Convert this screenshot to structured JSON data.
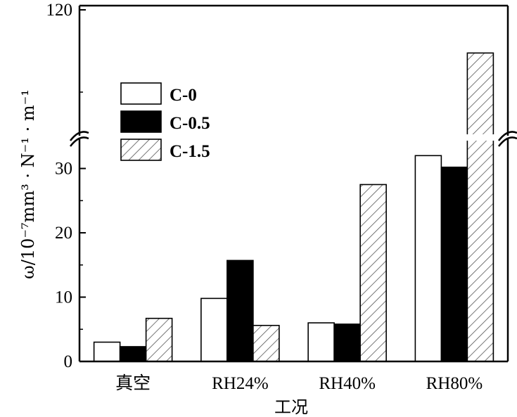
{
  "chart_data": {
    "type": "bar",
    "title": "",
    "xlabel": "工况",
    "ylabel": "ω/10⁻⁷mm³ · N⁻¹ · m⁻¹",
    "categories": [
      "真空",
      "RH24%",
      "RH40%",
      "RH80%"
    ],
    "series": [
      {
        "name": "C-0",
        "values": [
          3.0,
          9.8,
          6.0,
          32.0
        ],
        "fill": "white"
      },
      {
        "name": "C-0.5",
        "values": [
          2.3,
          15.7,
          5.8,
          30.2
        ],
        "fill": "black"
      },
      {
        "name": "C-1.5",
        "values": [
          6.7,
          5.6,
          27.5,
          108.0
        ],
        "fill": "hatch"
      }
    ],
    "ylim": [
      0,
      120
    ],
    "axis_break": [
      34,
      85
    ],
    "yticks": [
      0,
      10,
      20,
      30,
      120
    ],
    "yticklabels": [
      "0",
      "10",
      "20",
      "30",
      "120"
    ],
    "grid": false,
    "legend_position": "upper-left"
  }
}
